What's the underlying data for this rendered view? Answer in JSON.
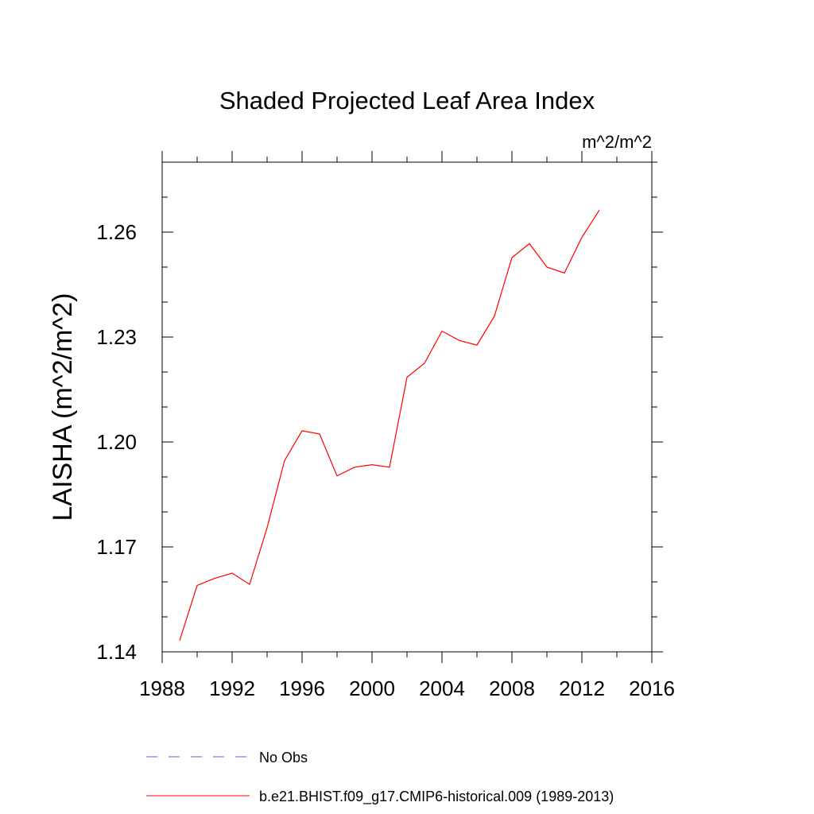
{
  "chart_data": {
    "type": "line",
    "title": "Shaded Projected Leaf Area Index",
    "units_label": "m^2/m^2",
    "ylabel": "LAISHA  (m^2/m^2)",
    "xlabel": "",
    "xlim": [
      1988,
      2016
    ],
    "ylim": [
      1.14,
      1.28
    ],
    "x_ticks": [
      "1988",
      "1992",
      "1996",
      "2000",
      "2004",
      "2008",
      "2012",
      "2016"
    ],
    "y_ticks": [
      "1.14",
      "1.17",
      "1.20",
      "1.23",
      "1.26"
    ],
    "grid": false,
    "legend_placement": "bottom",
    "series": [
      {
        "name": "No Obs",
        "color": "#6a5acd",
        "style": "dashed",
        "x": [],
        "values": []
      },
      {
        "name": "b.e21.BHIST.f09_g17.CMIP6-historical.009 (1989-2013)",
        "color": "#ff0000",
        "style": "solid",
        "x": [
          1989,
          1990,
          1991,
          1992,
          1993,
          1994,
          1995,
          1996,
          1997,
          1998,
          1999,
          2000,
          2001,
          2002,
          2003,
          2004,
          2005,
          2006,
          2007,
          2008,
          2009,
          2010,
          2011,
          2012,
          2013
        ],
        "values": [
          1.1432,
          1.159,
          1.161,
          1.1625,
          1.1593,
          1.1755,
          1.1947,
          1.2032,
          1.2023,
          1.1903,
          1.1928,
          1.1935,
          1.1928,
          1.2185,
          1.2225,
          1.2317,
          1.229,
          1.2277,
          1.236,
          1.2527,
          1.2567,
          1.25,
          1.2483,
          1.2585,
          1.2663
        ]
      }
    ]
  }
}
